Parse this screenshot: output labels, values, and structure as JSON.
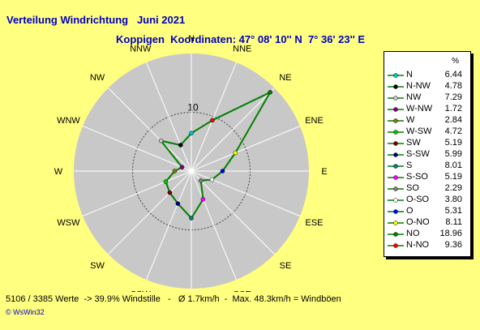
{
  "title": "Verteilung Windrichtung   Juni 2021",
  "subtitle": "Koppigen  Koordinaten: 47° 08' 10'' N  7° 36' 23'' E",
  "footer": "5106 / 3385 Werte  -> 39.9% Windstille   -   Ø 1.7km/h  -  Max. 48.3km/h = Windböen",
  "brand": "© WsWin32",
  "legend_unit": "%",
  "chart_data": {
    "type": "radar",
    "title": "Verteilung Windrichtung   Juni 2021",
    "rmax": 20,
    "ring_label": "10",
    "directions": [
      "N",
      "NNE",
      "NE",
      "ENE",
      "E",
      "ESE",
      "SE",
      "SSE",
      "S",
      "SSW",
      "SW",
      "WSW",
      "W",
      "WNW",
      "NW",
      "NNW"
    ],
    "series": [
      {
        "name": "",
        "color": "#008000",
        "values": {
          "N": 6.44,
          "NNE": 9.36,
          "NE": 18.96,
          "ENE": 8.11,
          "E": 5.31,
          "ESE": 3.8,
          "SE": 2.29,
          "SSE": 5.19,
          "S": 8.01,
          "SSW": 5.99,
          "SW": 5.19,
          "WSW": 4.72,
          "W": 2.84,
          "WNW": 1.72,
          "NW": 7.29,
          "NNW": 4.78
        }
      }
    ],
    "legend": [
      {
        "label": "N",
        "value": "6.44",
        "color": "#00c8c8"
      },
      {
        "label": "N-NW",
        "value": "4.78",
        "color": "#000000"
      },
      {
        "label": "NW",
        "value": "7.29",
        "color": "#c8c8c8"
      },
      {
        "label": "W-NW",
        "value": "1.72",
        "color": "#800080"
      },
      {
        "label": "W",
        "value": "2.84",
        "color": "#808000"
      },
      {
        "label": "W-SW",
        "value": "4.72",
        "color": "#00c800"
      },
      {
        "label": "SW",
        "value": "5.19",
        "color": "#800000"
      },
      {
        "label": "S-SW",
        "value": "5.99",
        "color": "#000080"
      },
      {
        "label": "S",
        "value": "8.01",
        "color": "#008080"
      },
      {
        "label": "S-SO",
        "value": "5.19",
        "color": "#ff00ff"
      },
      {
        "label": "SO",
        "value": "2.29",
        "color": "#808080"
      },
      {
        "label": "O-SO",
        "value": "3.80",
        "color": "#ffffff"
      },
      {
        "label": "O",
        "value": "5.31",
        "color": "#0000ff"
      },
      {
        "label": "O-NO",
        "value": "8.11",
        "color": "#ffff00"
      },
      {
        "label": "NO",
        "value": "18.96",
        "color": "#008000"
      },
      {
        "label": "N-NO",
        "value": "9.36",
        "color": "#ff0000"
      }
    ]
  }
}
